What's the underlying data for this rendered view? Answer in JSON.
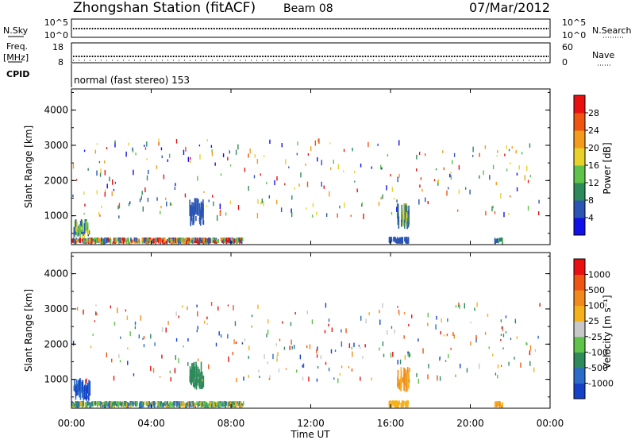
{
  "header": {
    "title": "Zhongshan Station (fitACF)",
    "beam": "Beam 08",
    "date": "07/Mar/2012"
  },
  "noise_panel": {
    "left_label": "N.Sky",
    "right_label": "N.Search",
    "left_ticks": [
      "10^5",
      "10^0"
    ],
    "right_ticks": [
      "10^5",
      "10^0"
    ]
  },
  "freq_panel": {
    "left_label": "Freq.",
    "left_unit": "[MHz]",
    "right_label": "Nave",
    "left_ticks": [
      "18",
      "8"
    ],
    "right_ticks": [
      "60",
      "0"
    ]
  },
  "cpid_panel": {
    "label": "CPID",
    "text": "normal (fast stereo) 153"
  },
  "chart_data": [
    {
      "type": "heatmap",
      "name": "power",
      "ylabel": "Slant Range [km]",
      "xlabel": "",
      "ylim": [
        180,
        4600
      ],
      "yticks": [
        "1000",
        "2000",
        "3000",
        "4000"
      ],
      "colorbar": {
        "label": "Power [dB]",
        "ticks": [
          "4",
          "8",
          "12",
          "16",
          "20",
          "24",
          "28"
        ],
        "colors": [
          "#1010e8",
          "#2a55b5",
          "#2e8a5a",
          "#5fc24a",
          "#e8d22a",
          "#f59b1c",
          "#ee5512",
          "#e81010"
        ]
      },
      "regions": [
        {
          "t0": 0.0,
          "t1": 8.6,
          "r0": 190,
          "r1": 380,
          "colors": [
            "#e81010",
            "#f59b1c",
            "#5fc24a",
            "#2a55b5"
          ]
        },
        {
          "t0": 0.1,
          "t1": 0.9,
          "r0": 380,
          "r1": 900,
          "colors": [
            "#5fc24a",
            "#e8d22a",
            "#2a55b5"
          ]
        },
        {
          "t0": 5.9,
          "t1": 6.6,
          "r0": 700,
          "r1": 1500,
          "colors": [
            "#2a55b5"
          ]
        },
        {
          "t0": 16.3,
          "t1": 16.9,
          "r0": 600,
          "r1": 1350,
          "colors": [
            "#2a55b5",
            "#2e8a5a",
            "#e8d22a"
          ]
        },
        {
          "t0": 15.9,
          "t1": 16.9,
          "r0": 190,
          "r1": 400,
          "colors": [
            "#2a55b5"
          ]
        },
        {
          "t0": 21.2,
          "t1": 21.6,
          "r0": 190,
          "r1": 380,
          "colors": [
            "#2a55b5",
            "#5fc24a"
          ]
        }
      ]
    },
    {
      "type": "heatmap",
      "name": "velocity",
      "ylabel": "Slant Range [km]",
      "xlabel": "Time UT",
      "xticks": [
        "00:00",
        "04:00",
        "08:00",
        "12:00",
        "16:00",
        "20:00",
        "00:00"
      ],
      "ylim": [
        180,
        4600
      ],
      "yticks": [
        "1000",
        "2000",
        "3000",
        "4000"
      ],
      "colorbar": {
        "label": "Velocity [m s⁻¹]",
        "ticks": [
          "1000",
          "500",
          "100",
          "25",
          "-25",
          "-100",
          "-500",
          "-1000"
        ],
        "colors": [
          "#1540c8",
          "#2a6cc8",
          "#2e8a5a",
          "#5fc24a",
          "#c8c8c8",
          "#f5b01c",
          "#f08a1c",
          "#ee5512",
          "#e81010"
        ]
      },
      "regions": [
        {
          "t0": 0.0,
          "t1": 8.6,
          "r0": 190,
          "r1": 380,
          "colors": [
            "#5fc24a",
            "#2e8a5a",
            "#f5b01c",
            "#2a6cc8"
          ]
        },
        {
          "t0": 0.1,
          "t1": 0.9,
          "r0": 380,
          "r1": 1000,
          "colors": [
            "#1540c8",
            "#2a6cc8"
          ]
        },
        {
          "t0": 5.9,
          "t1": 6.6,
          "r0": 700,
          "r1": 1500,
          "colors": [
            "#2e8a5a"
          ]
        },
        {
          "t0": 16.3,
          "t1": 16.9,
          "r0": 600,
          "r1": 1350,
          "colors": [
            "#f08a1c",
            "#f5b01c"
          ]
        },
        {
          "t0": 15.9,
          "t1": 16.9,
          "r0": 190,
          "r1": 400,
          "colors": [
            "#f5b01c"
          ]
        },
        {
          "t0": 21.2,
          "t1": 21.6,
          "r0": 190,
          "r1": 380,
          "colors": [
            "#f5b01c",
            "#f08a1c"
          ]
        }
      ]
    }
  ]
}
